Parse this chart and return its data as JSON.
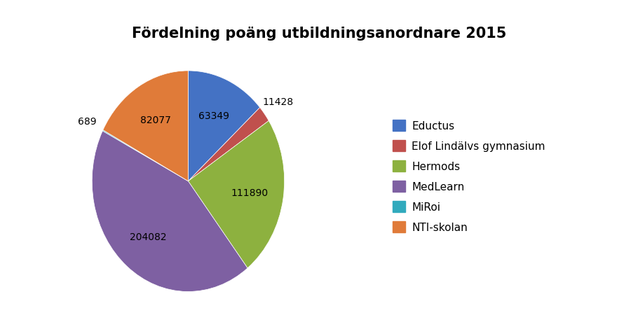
{
  "title": "Fördelning poäng utbildningsanordnare 2015",
  "labels": [
    "Eductus",
    "Elof Lindälvs gymnasium",
    "Hermods",
    "MedLearn",
    "MiRoi",
    "NTI-skolan"
  ],
  "values": [
    63349,
    11428,
    111890,
    204082,
    689,
    82077
  ],
  "colors": [
    "#4472C4",
    "#C0504D",
    "#8DB13F",
    "#7E60A2",
    "#31AABD",
    "#E07B39"
  ],
  "title_fontsize": 15,
  "label_fontsize": 10,
  "legend_fontsize": 11,
  "background_color": "#FFFFFF",
  "startangle": 90
}
